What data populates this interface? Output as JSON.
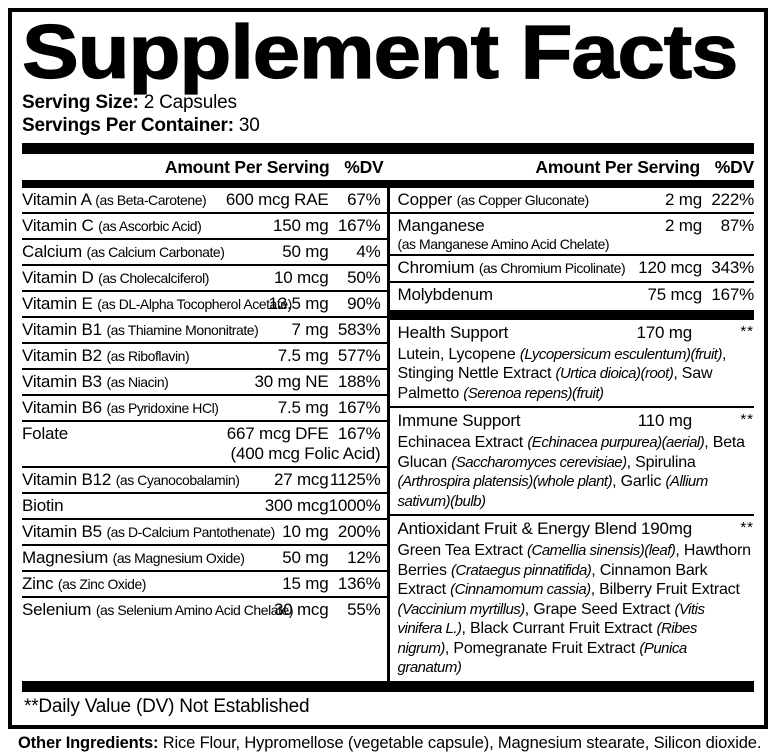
{
  "title": "Supplement Facts",
  "serving": {
    "size_label": "Serving Size:",
    "size_value": "2 Capsules",
    "container_label": "Servings Per Container:",
    "container_value": "30"
  },
  "columns": {
    "header_amount": "Amount Per Serving",
    "header_dv": "%DV"
  },
  "left_rows": [
    {
      "name": "Vitamin A",
      "paren": "(as Beta-Carotene)",
      "amount": "600 mcg RAE",
      "dv": "67%"
    },
    {
      "name": "Vitamin C",
      "paren": "(as Ascorbic Acid)",
      "amount": "150 mg",
      "dv": "167%"
    },
    {
      "name": "Calcium",
      "paren": "(as Calcium Carbonate)",
      "amount": "50 mg",
      "dv": "4%"
    },
    {
      "name": "Vitamin D",
      "paren": "(as Cholecalciferol)",
      "amount": "10 mcg",
      "dv": "50%"
    },
    {
      "name": "Vitamin E",
      "paren": "(as DL-Alpha Tocopherol Acetate)",
      "amount": "13.5 mg",
      "dv": "90%"
    },
    {
      "name": "Vitamin B1",
      "paren": "(as Thiamine Mononitrate)",
      "amount": "7 mg",
      "dv": "583%"
    },
    {
      "name": "Vitamin B2",
      "paren": "(as Riboflavin)",
      "amount": "7.5 mg",
      "dv": "577%"
    },
    {
      "name": "Vitamin B3",
      "paren": "(as Niacin)",
      "amount": "30 mg NE",
      "dv": "188%"
    },
    {
      "name": "Vitamin B6",
      "paren": "(as Pyridoxine HCl)",
      "amount": "7.5 mg",
      "dv": "167%"
    },
    {
      "name": "Folate",
      "paren": "",
      "amount": "667 mcg DFE",
      "amount2": "(400 mcg Folic Acid)",
      "dv": "167%"
    },
    {
      "name": "Vitamin B12",
      "paren": "(as Cyanocobalamin)",
      "amount": "27 mcg",
      "dv": "1125%"
    },
    {
      "name": "Biotin",
      "paren": "",
      "amount": "300 mcg",
      "dv": "1000%"
    },
    {
      "name": "Vitamin B5",
      "paren": "(as D-Calcium Pantothenate)",
      "amount": "10 mg",
      "dv": "200%"
    },
    {
      "name": "Magnesium",
      "paren": "(as Magnesium Oxide)",
      "amount": "50 mg",
      "dv": "12%"
    },
    {
      "name": "Zinc",
      "paren": "(as Zinc Oxide)",
      "amount": "15 mg",
      "dv": "136%"
    },
    {
      "name": "Selenium",
      "paren": "(as Selenium Amino Acid Chelate)",
      "amount": "30 mcg",
      "dv": "55%"
    }
  ],
  "right_rows": [
    {
      "name": "Copper",
      "paren": "(as Copper Gluconate)",
      "amount": "2 mg",
      "dv": "222%"
    },
    {
      "name": "Manganese",
      "paren": "(as Manganese Amino Acid Chelate)",
      "amount": "2 mg",
      "dv": "87%"
    },
    {
      "name": "Chromium",
      "paren": "(as Chromium Picolinate)",
      "amount": "120 mcg",
      "dv": "343%"
    },
    {
      "name": "Molybdenum",
      "paren": "",
      "amount": "75 mcg",
      "dv": "167%"
    }
  ],
  "blends": [
    {
      "name": "Health Support",
      "amount": "170 mg",
      "dv": "**",
      "desc": [
        {
          "t": "Lutein, Lycopene "
        },
        {
          "t": "(Lycopersicum esculentum)(fruit)",
          "i": true
        },
        {
          "t": ", Stinging Nettle Extract "
        },
        {
          "t": "(Urtica dioica)(root)",
          "i": true
        },
        {
          "t": ", Saw Palmetto "
        },
        {
          "t": "(Serenoa repens)(fruit)",
          "i": true
        }
      ]
    },
    {
      "name": "Immune Support",
      "amount": "110 mg",
      "dv": "**",
      "desc": [
        {
          "t": "Echinacea Extract "
        },
        {
          "t": "(Echinacea purpurea)(aerial)",
          "i": true
        },
        {
          "t": ", Beta Glucan "
        },
        {
          "t": "(Saccharomyces cerevisiae)",
          "i": true
        },
        {
          "t": ", Spirulina "
        },
        {
          "t": "(Arthrospira platensis)(whole plant)",
          "i": true
        },
        {
          "t": ", Garlic "
        },
        {
          "t": "(Allium sativum)(bulb)",
          "i": true
        }
      ]
    },
    {
      "name": "Antioxidant Fruit & Energy Blend",
      "amount": "190mg",
      "dv": "**",
      "desc": [
        {
          "t": "Green Tea Extract "
        },
        {
          "t": "(Camellia sinensis)(leaf)",
          "i": true
        },
        {
          "t": ", Hawthorn Berries "
        },
        {
          "t": "(Crataegus pinnatifida)",
          "i": true
        },
        {
          "t": ", Cinnamon Bark Extract "
        },
        {
          "t": "(Cinnamomum cassia)",
          "i": true
        },
        {
          "t": ", Bilberry Fruit Extract "
        },
        {
          "t": "(Vaccinium myrtillus)",
          "i": true
        },
        {
          "t": ", Grape Seed Extract "
        },
        {
          "t": "(Vitis vinifera L.)",
          "i": true
        },
        {
          "t": ", Black Currant Fruit Extract "
        },
        {
          "t": "(Ribes nigrum)",
          "i": true
        },
        {
          "t": ", Pomegranate Fruit Extract "
        },
        {
          "t": "(Punica granatum)",
          "i": true
        }
      ]
    }
  ],
  "footnote": "**Daily Value (DV) Not Established",
  "other_ingredients": {
    "label": "Other Ingredients:",
    "text": " Rice Flour, Hypromellose (vegetable capsule), Magnesium stearate, Silicon dioxide."
  },
  "colors": {
    "ink": "#000000",
    "paper": "#ffffff"
  }
}
